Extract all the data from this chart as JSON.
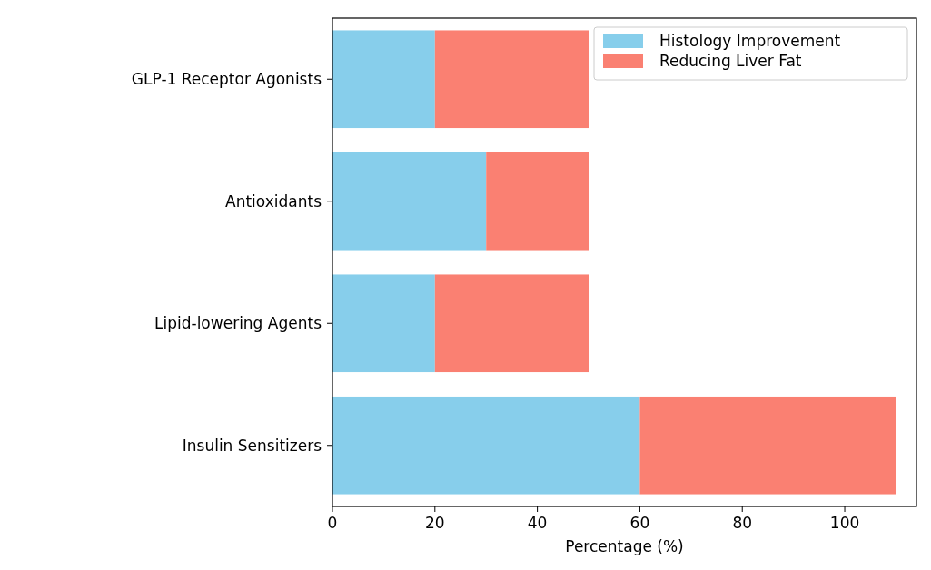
{
  "chart_data": {
    "type": "bar",
    "orientation": "horizontal",
    "stacked": true,
    "xlabel": "Percentage (%)",
    "categories": [
      "GLP-1 Receptor Agonists",
      "Antioxidants",
      "Lipid-lowering Agents",
      "Insulin Sensitizers"
    ],
    "series": [
      {
        "name": "Histology Improvement",
        "color": "#87ceeb",
        "values": [
          20,
          30,
          20,
          60
        ]
      },
      {
        "name": "Reducing Liver Fat",
        "color": "#fa8072",
        "values": [
          30,
          20,
          30,
          50
        ]
      }
    ],
    "xlim": [
      0,
      114
    ],
    "xticks": [
      0,
      20,
      40,
      60,
      80,
      100
    ],
    "legend": "top right"
  }
}
